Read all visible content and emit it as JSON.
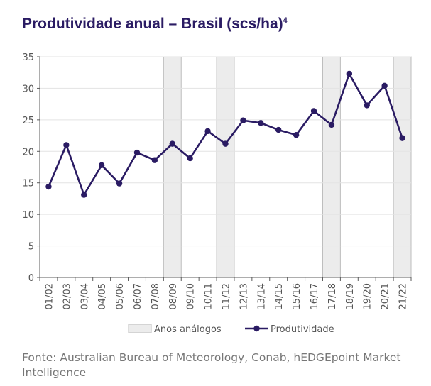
{
  "title": {
    "text": "Produtividade anual – Brasil (scs/ha)",
    "superscript": "4"
  },
  "source": "Fonte: Australian Bureau of Meteorology, Conab, hEDGEpoint Market Intelligence",
  "colors": {
    "line": "#2a1b63",
    "shade_fill": "#ececec",
    "shade_stroke": "#bdbdbd",
    "axis": "#5b5b5b",
    "grid": "#e3e3e3"
  },
  "chart_data": {
    "type": "line",
    "categories": [
      "01/02",
      "02/03",
      "03/04",
      "04/05",
      "05/06",
      "06/07",
      "07/08",
      "08/09",
      "09/10",
      "10/11",
      "11/12",
      "12/13",
      "13/14",
      "14/15",
      "15/16",
      "16/17",
      "17/18",
      "18/19",
      "19/20",
      "20/21",
      "21/22"
    ],
    "series": [
      {
        "name": "Produtividade",
        "values": [
          14.4,
          21.0,
          13.1,
          17.8,
          14.9,
          19.8,
          18.6,
          21.2,
          18.9,
          23.2,
          21.2,
          24.9,
          24.5,
          23.4,
          22.6,
          26.4,
          24.2,
          32.3,
          27.3,
          30.4,
          22.1
        ]
      }
    ],
    "shaded": {
      "name": "Anos análogos",
      "categories": [
        "08/09",
        "11/12",
        "17/18",
        "21/22"
      ]
    },
    "ylim": [
      0,
      35
    ],
    "yticks": [
      0,
      5,
      10,
      15,
      20,
      25,
      30,
      35
    ],
    "grid": "horizontal",
    "legend": "bottom-center"
  }
}
